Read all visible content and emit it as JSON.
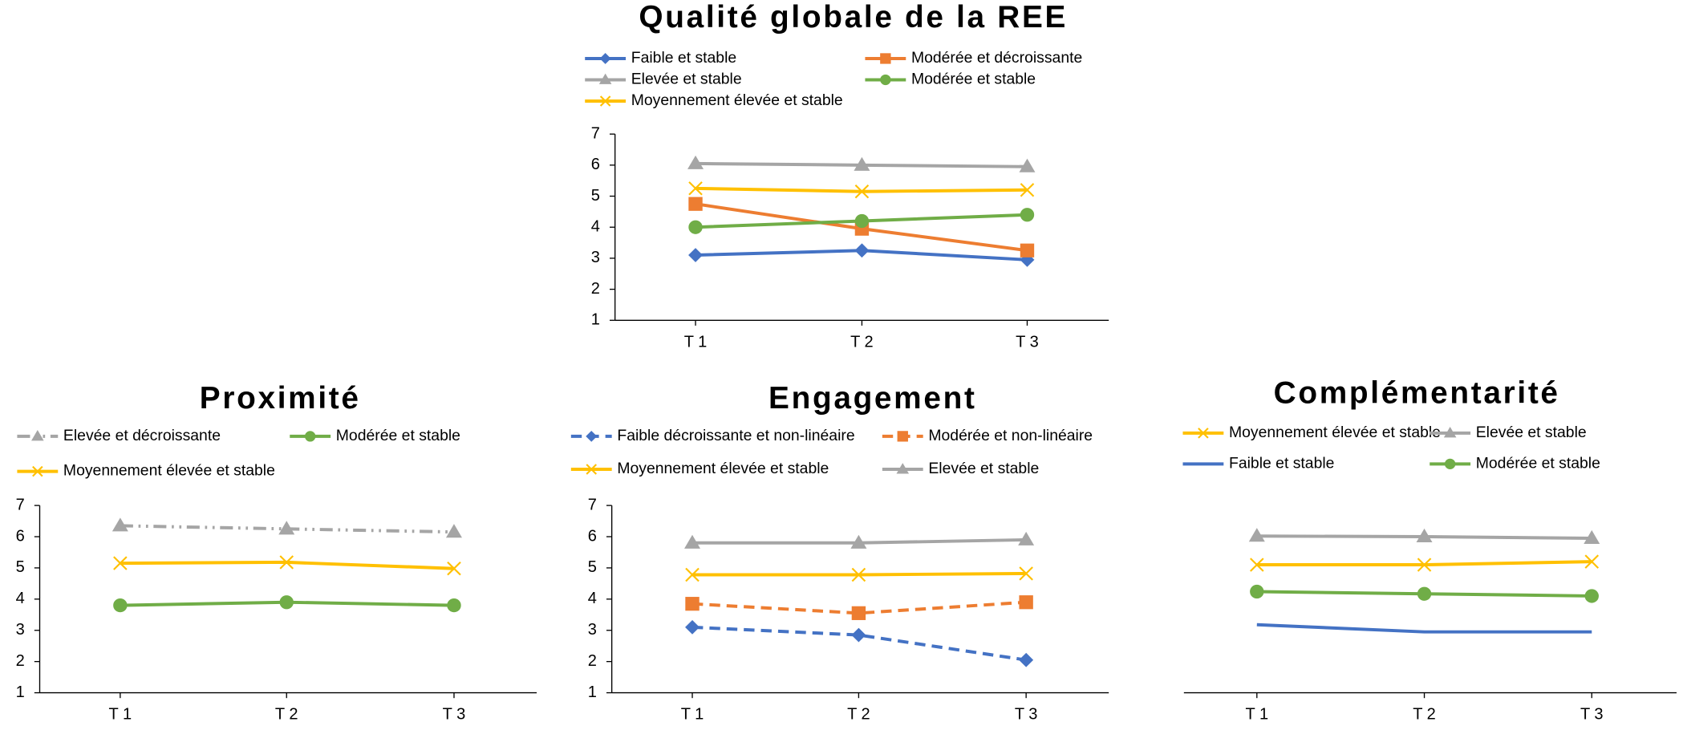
{
  "chart_data": [
    {
      "type": "line",
      "title": "Qualité globale de la REE",
      "categories": [
        "T 1",
        "T 2",
        "T 3"
      ],
      "ylim": [
        1,
        7
      ],
      "yticks": [
        1,
        2,
        3,
        4,
        5,
        6,
        7
      ],
      "series": [
        {
          "name": "Faible et stable",
          "color": "#4472c4",
          "marker": "diamond",
          "dash": "solid",
          "values": [
            3.1,
            3.25,
            2.95
          ]
        },
        {
          "name": "Modérée et décroissante",
          "color": "#ed7d31",
          "marker": "square",
          "dash": "solid",
          "values": [
            4.75,
            3.95,
            3.25
          ]
        },
        {
          "name": "Elevée et stable",
          "color": "#a5a5a5",
          "marker": "triangle",
          "dash": "solid",
          "values": [
            6.05,
            6.0,
            5.95
          ]
        },
        {
          "name": "Modérée et stable",
          "color": "#70ad47",
          "marker": "circle",
          "dash": "solid",
          "values": [
            4.0,
            4.2,
            4.4
          ]
        },
        {
          "name": "Moyennement élevée et stable",
          "color": "#ffc000",
          "marker": "x",
          "dash": "solid",
          "values": [
            5.25,
            5.15,
            5.2
          ]
        }
      ]
    },
    {
      "type": "line",
      "title": "Proximité",
      "categories": [
        "T 1",
        "T 2",
        "T 3"
      ],
      "ylim": [
        1,
        7
      ],
      "yticks": [
        1,
        2,
        3,
        4,
        5,
        6,
        7
      ],
      "series": [
        {
          "name": "Elevée et décroissante",
          "color": "#a5a5a5",
          "marker": "triangle",
          "dash": "dashdotdot",
          "values": [
            6.35,
            6.25,
            6.15
          ]
        },
        {
          "name": "Modérée et stable",
          "color": "#70ad47",
          "marker": "circle",
          "dash": "solid",
          "values": [
            3.8,
            3.9,
            3.8
          ]
        },
        {
          "name": "Moyennement élevée et stable",
          "color": "#ffc000",
          "marker": "x",
          "dash": "solid",
          "values": [
            5.15,
            5.18,
            4.98
          ]
        }
      ]
    },
    {
      "type": "line",
      "title": "Engagement",
      "categories": [
        "T 1",
        "T 2",
        "T 3"
      ],
      "ylim": [
        1,
        7
      ],
      "yticks": [
        1,
        2,
        3,
        4,
        5,
        6,
        7
      ],
      "series": [
        {
          "name": "Faible décroissante et non-linéaire",
          "color": "#4472c4",
          "marker": "diamond",
          "dash": "dashed",
          "values": [
            3.1,
            2.85,
            2.05
          ]
        },
        {
          "name": "Modérée et non-linéaire",
          "color": "#ed7d31",
          "marker": "square",
          "dash": "dashed",
          "values": [
            3.85,
            3.55,
            3.9
          ]
        },
        {
          "name": "Moyennement élevée et stable",
          "color": "#ffc000",
          "marker": "x",
          "dash": "solid",
          "values": [
            4.78,
            4.78,
            4.82
          ]
        },
        {
          "name": "Elevée et stable",
          "color": "#a5a5a5",
          "marker": "triangle",
          "dash": "solid",
          "values": [
            5.8,
            5.8,
            5.9
          ]
        }
      ]
    },
    {
      "type": "line",
      "title": "Complémentarité",
      "categories": [
        "T 1",
        "T 2",
        "T 3"
      ],
      "ylim": [
        1,
        7
      ],
      "series": [
        {
          "name": "Moyennement élevée et stable",
          "color": "#ffc000",
          "marker": "x",
          "dash": "solid",
          "values": [
            5.1,
            5.1,
            5.2
          ]
        },
        {
          "name": "Elevée et stable",
          "color": "#a5a5a5",
          "marker": "triangle",
          "dash": "solid",
          "values": [
            6.02,
            6.0,
            5.95
          ]
        },
        {
          "name": "Faible et stable",
          "color": "#4472c4",
          "marker": "none",
          "dash": "solid",
          "values": [
            3.18,
            2.95,
            2.95
          ]
        },
        {
          "name": "Modérée et stable",
          "color": "#70ad47",
          "marker": "circle",
          "dash": "solid",
          "values": [
            4.24,
            4.17,
            4.1
          ]
        }
      ]
    }
  ]
}
